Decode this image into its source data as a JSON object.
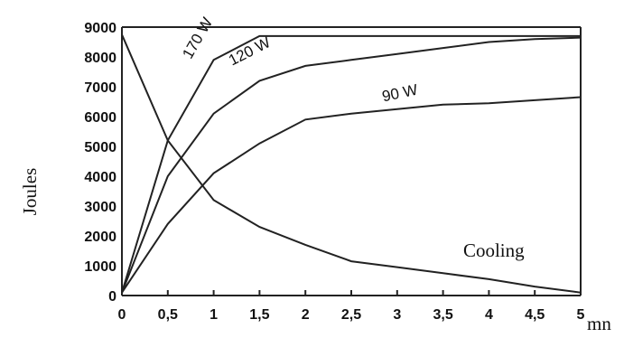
{
  "chart_data": {
    "type": "line",
    "title": "",
    "xlabel": "mn",
    "ylabel": "Joules",
    "xlim": [
      0,
      5
    ],
    "ylim": [
      0,
      9000
    ],
    "grid": false,
    "x_ticks": [
      "0",
      "0,5",
      "1",
      "1,5",
      "2",
      "2,5",
      "3",
      "3,5",
      "4",
      "4,5",
      "5"
    ],
    "y_ticks": [
      "0",
      "1000",
      "2000",
      "3000",
      "4000",
      "5000",
      "6000",
      "7000",
      "8000",
      "9000"
    ],
    "series": [
      {
        "name": "170 W",
        "label": "170 W",
        "points": [
          [
            0,
            100
          ],
          [
            0.5,
            5200
          ],
          [
            1,
            7900
          ],
          [
            1.5,
            8700
          ],
          [
            5,
            8700
          ]
        ]
      },
      {
        "name": "120 W",
        "label": "120 W",
        "points": [
          [
            0,
            100
          ],
          [
            0.5,
            4000
          ],
          [
            1,
            6100
          ],
          [
            1.5,
            7200
          ],
          [
            2,
            7700
          ],
          [
            2.5,
            7900
          ],
          [
            3,
            8100
          ],
          [
            3.5,
            8300
          ],
          [
            4,
            8500
          ],
          [
            4.5,
            8600
          ],
          [
            5,
            8650
          ]
        ]
      },
      {
        "name": "90 W",
        "label": "90 W",
        "points": [
          [
            0,
            100
          ],
          [
            0.5,
            2400
          ],
          [
            1,
            4100
          ],
          [
            1.5,
            5100
          ],
          [
            2,
            5900
          ],
          [
            2.5,
            6100
          ],
          [
            3,
            6250
          ],
          [
            3.5,
            6400
          ],
          [
            4,
            6450
          ],
          [
            4.5,
            6550
          ],
          [
            5,
            6650
          ]
        ]
      },
      {
        "name": "Cooling",
        "label": "Cooling",
        "points": [
          [
            0,
            8750
          ],
          [
            0.5,
            5200
          ],
          [
            1,
            3200
          ],
          [
            1.5,
            2300
          ],
          [
            2,
            1700
          ],
          [
            2.5,
            1150
          ],
          [
            3,
            950
          ],
          [
            3.5,
            750
          ],
          [
            4,
            550
          ],
          [
            4.5,
            300
          ],
          [
            5,
            100
          ]
        ]
      }
    ]
  }
}
